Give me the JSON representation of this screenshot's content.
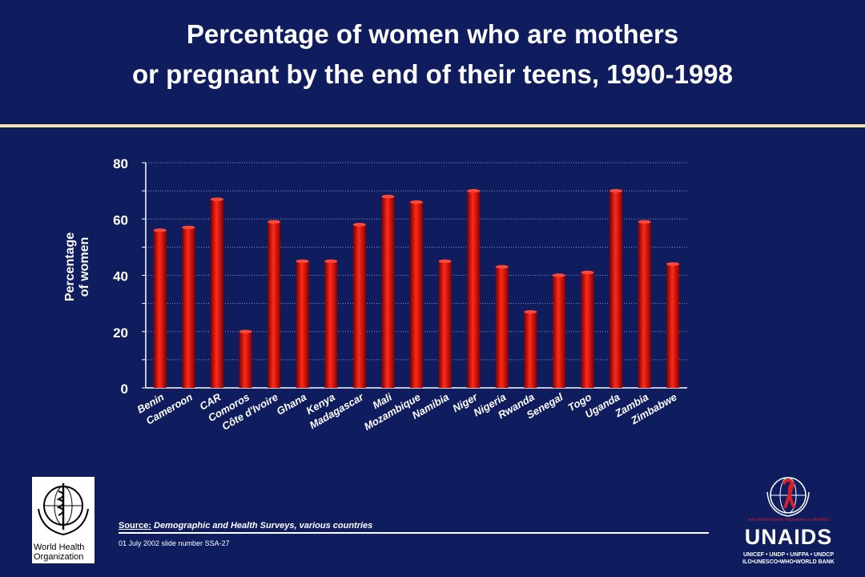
{
  "slide": {
    "title_line1": "Percentage of women who are mothers",
    "title_line2": "or pregnant by the end of their teens, 1990-1998",
    "source_label": "Source:",
    "source_text": "Demographic and Health Surveys, various countries",
    "slide_number": "01 July 2002 slide number SSA-27",
    "who_org": "World Health Organization",
    "unaids_name": "UNAIDS",
    "unaids_tag": "Joint United Nations Programme on HIV/AIDS",
    "unaids_sub1": "UNICEF • UNDP • UNFPA • UNDCP",
    "unaids_sub2": "ILO•UNESCO•WHO•WORLD BANK"
  },
  "colors": {
    "background": "#0f1d5e",
    "bar": "#e81010",
    "rule": "#f2e6a8",
    "text": "#ffffff"
  },
  "chart_data": {
    "type": "bar",
    "title": "Percentage of women who are mothers or pregnant by the end of their teens, 1990-1998",
    "xlabel": "",
    "ylabel": "Percentage of women",
    "ylim": [
      0,
      80
    ],
    "yticks": [
      0,
      20,
      40,
      60,
      80
    ],
    "grid": true,
    "categories": [
      "Benin",
      "Cameroon",
      "CAR",
      "Comoros",
      "Côte d'Ivoire",
      "Ghana",
      "Kenya",
      "Madagascar",
      "Mali",
      "Mozambique",
      "Namibia",
      "Niger",
      "Nigeria",
      "Rwanda",
      "Senegal",
      "Togo",
      "Uganda",
      "Zambia",
      "Zimbabwe"
    ],
    "values": [
      56,
      57,
      67,
      20,
      59,
      45,
      45,
      58,
      68,
      66,
      45,
      70,
      43,
      27,
      40,
      41,
      70,
      59,
      44
    ]
  }
}
